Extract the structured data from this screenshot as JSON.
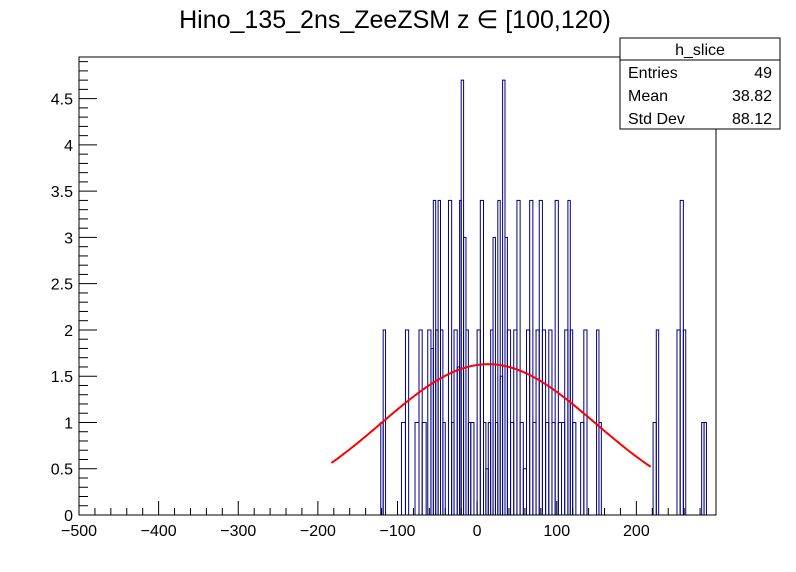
{
  "chart_data": {
    "type": "histogram",
    "title": "Hino_135_2ns_ZeeZSM z  ∈ [100,120)",
    "xlabel": "",
    "ylabel": "",
    "xlim": [
      -500,
      300
    ],
    "ylim": [
      0,
      4.95
    ],
    "grid": false,
    "x_ticks": [
      -500,
      -400,
      -300,
      -200,
      -100,
      0,
      100,
      200
    ],
    "x_tick_labels": [
      "−500",
      "−400",
      "−300",
      "−200",
      "−100",
      "0",
      "100",
      "200"
    ],
    "y_ticks": [
      0,
      0.5,
      1,
      1.5,
      2,
      2.5,
      3,
      3.5,
      4,
      4.5
    ],
    "y_tick_labels": [
      "0",
      "0.5",
      "1",
      "1.5",
      "2",
      "2.5",
      "3",
      "3.5",
      "4",
      "4.5"
    ],
    "histogram": {
      "color": "#000080",
      "bins": [
        {
          "x0": -121,
          "x1": -118,
          "y": 1
        },
        {
          "x0": -118,
          "x1": -115,
          "y": 2
        },
        {
          "x0": -95,
          "x1": -90,
          "y": 1
        },
        {
          "x0": -90,
          "x1": -86,
          "y": 2
        },
        {
          "x0": -78,
          "x1": -73,
          "y": 1
        },
        {
          "x0": -73,
          "x1": -69,
          "y": 2
        },
        {
          "x0": -69,
          "x1": -64,
          "y": 1
        },
        {
          "x0": -62,
          "x1": -58,
          "y": 2
        },
        {
          "x0": -58,
          "x1": -55,
          "y": 1.8
        },
        {
          "x0": -55,
          "x1": -52,
          "y": 3.4
        },
        {
          "x0": -52,
          "x1": -49,
          "y": 2
        },
        {
          "x0": -49,
          "x1": -46,
          "y": 3.4
        },
        {
          "x0": -46,
          "x1": -43,
          "y": 2
        },
        {
          "x0": -43,
          "x1": -40,
          "y": 1
        },
        {
          "x0": -36,
          "x1": -32,
          "y": 3.4
        },
        {
          "x0": -32,
          "x1": -29,
          "y": 1
        },
        {
          "x0": -29,
          "x1": -25,
          "y": 2
        },
        {
          "x0": -25,
          "x1": -22,
          "y": 1.6
        },
        {
          "x0": -22,
          "x1": -20,
          "y": 3.4
        },
        {
          "x0": -20,
          "x1": -17,
          "y": 4.7
        },
        {
          "x0": -17,
          "x1": -14,
          "y": 3
        },
        {
          "x0": -14,
          "x1": -11,
          "y": 2
        },
        {
          "x0": -11,
          "x1": -8,
          "y": 1
        },
        {
          "x0": -8,
          "x1": -4,
          "y": 1
        },
        {
          "x0": 0,
          "x1": 4,
          "y": 2
        },
        {
          "x0": 4,
          "x1": 8,
          "y": 3.4
        },
        {
          "x0": 8,
          "x1": 11,
          "y": 1
        },
        {
          "x0": 11,
          "x1": 14,
          "y": 0.5
        },
        {
          "x0": 14,
          "x1": 17,
          "y": 1
        },
        {
          "x0": 17,
          "x1": 20,
          "y": 2
        },
        {
          "x0": 20,
          "x1": 23,
          "y": 3
        },
        {
          "x0": 23,
          "x1": 26,
          "y": 1
        },
        {
          "x0": 26,
          "x1": 29,
          "y": 3.4
        },
        {
          "x0": 29,
          "x1": 32,
          "y": 1.5
        },
        {
          "x0": 32,
          "x1": 35,
          "y": 4.7
        },
        {
          "x0": 35,
          "x1": 38,
          "y": 3
        },
        {
          "x0": 38,
          "x1": 42,
          "y": 2
        },
        {
          "x0": 42,
          "x1": 46,
          "y": 1
        },
        {
          "x0": 46,
          "x1": 50,
          "y": 2
        },
        {
          "x0": 50,
          "x1": 54,
          "y": 3.4
        },
        {
          "x0": 54,
          "x1": 58,
          "y": 1
        },
        {
          "x0": 58,
          "x1": 62,
          "y": 0.5
        },
        {
          "x0": 62,
          "x1": 66,
          "y": 2
        },
        {
          "x0": 66,
          "x1": 70,
          "y": 3.4
        },
        {
          "x0": 70,
          "x1": 74,
          "y": 1
        },
        {
          "x0": 74,
          "x1": 78,
          "y": 2
        },
        {
          "x0": 78,
          "x1": 82,
          "y": 3.4
        },
        {
          "x0": 82,
          "x1": 86,
          "y": 2
        },
        {
          "x0": 86,
          "x1": 90,
          "y": 1
        },
        {
          "x0": 90,
          "x1": 94,
          "y": 2
        },
        {
          "x0": 94,
          "x1": 98,
          "y": 1
        },
        {
          "x0": 98,
          "x1": 102,
          "y": 3.4
        },
        {
          "x0": 102,
          "x1": 106,
          "y": 1
        },
        {
          "x0": 106,
          "x1": 110,
          "y": 1
        },
        {
          "x0": 110,
          "x1": 114,
          "y": 2
        },
        {
          "x0": 114,
          "x1": 117,
          "y": 3.4
        },
        {
          "x0": 117,
          "x1": 120,
          "y": 2
        },
        {
          "x0": 120,
          "x1": 124,
          "y": 1
        },
        {
          "x0": 130,
          "x1": 134,
          "y": 1
        },
        {
          "x0": 134,
          "x1": 138,
          "y": 2
        },
        {
          "x0": 150,
          "x1": 153,
          "y": 2
        },
        {
          "x0": 153,
          "x1": 156,
          "y": 1
        },
        {
          "x0": 221,
          "x1": 225,
          "y": 1
        },
        {
          "x0": 225,
          "x1": 228,
          "y": 2
        },
        {
          "x0": 251,
          "x1": 255,
          "y": 2
        },
        {
          "x0": 255,
          "x1": 259,
          "y": 3.4
        },
        {
          "x0": 259,
          "x1": 262,
          "y": 2
        },
        {
          "x0": 282,
          "x1": 285,
          "y": 1
        },
        {
          "x0": 285,
          "x1": 288,
          "y": 1
        }
      ]
    },
    "fit": {
      "type": "gaussian",
      "color": "#ff0000",
      "amplitude": 1.63,
      "mean": 14,
      "sigma": 135,
      "x_range": [
        -183,
        218
      ]
    },
    "stats_box": {
      "title": "h_slice",
      "rows": [
        {
          "label": "Entries",
          "value": "49"
        },
        {
          "label": "Mean",
          "value": "38.82"
        },
        {
          "label": "Std Dev",
          "value": "88.12"
        }
      ]
    }
  }
}
